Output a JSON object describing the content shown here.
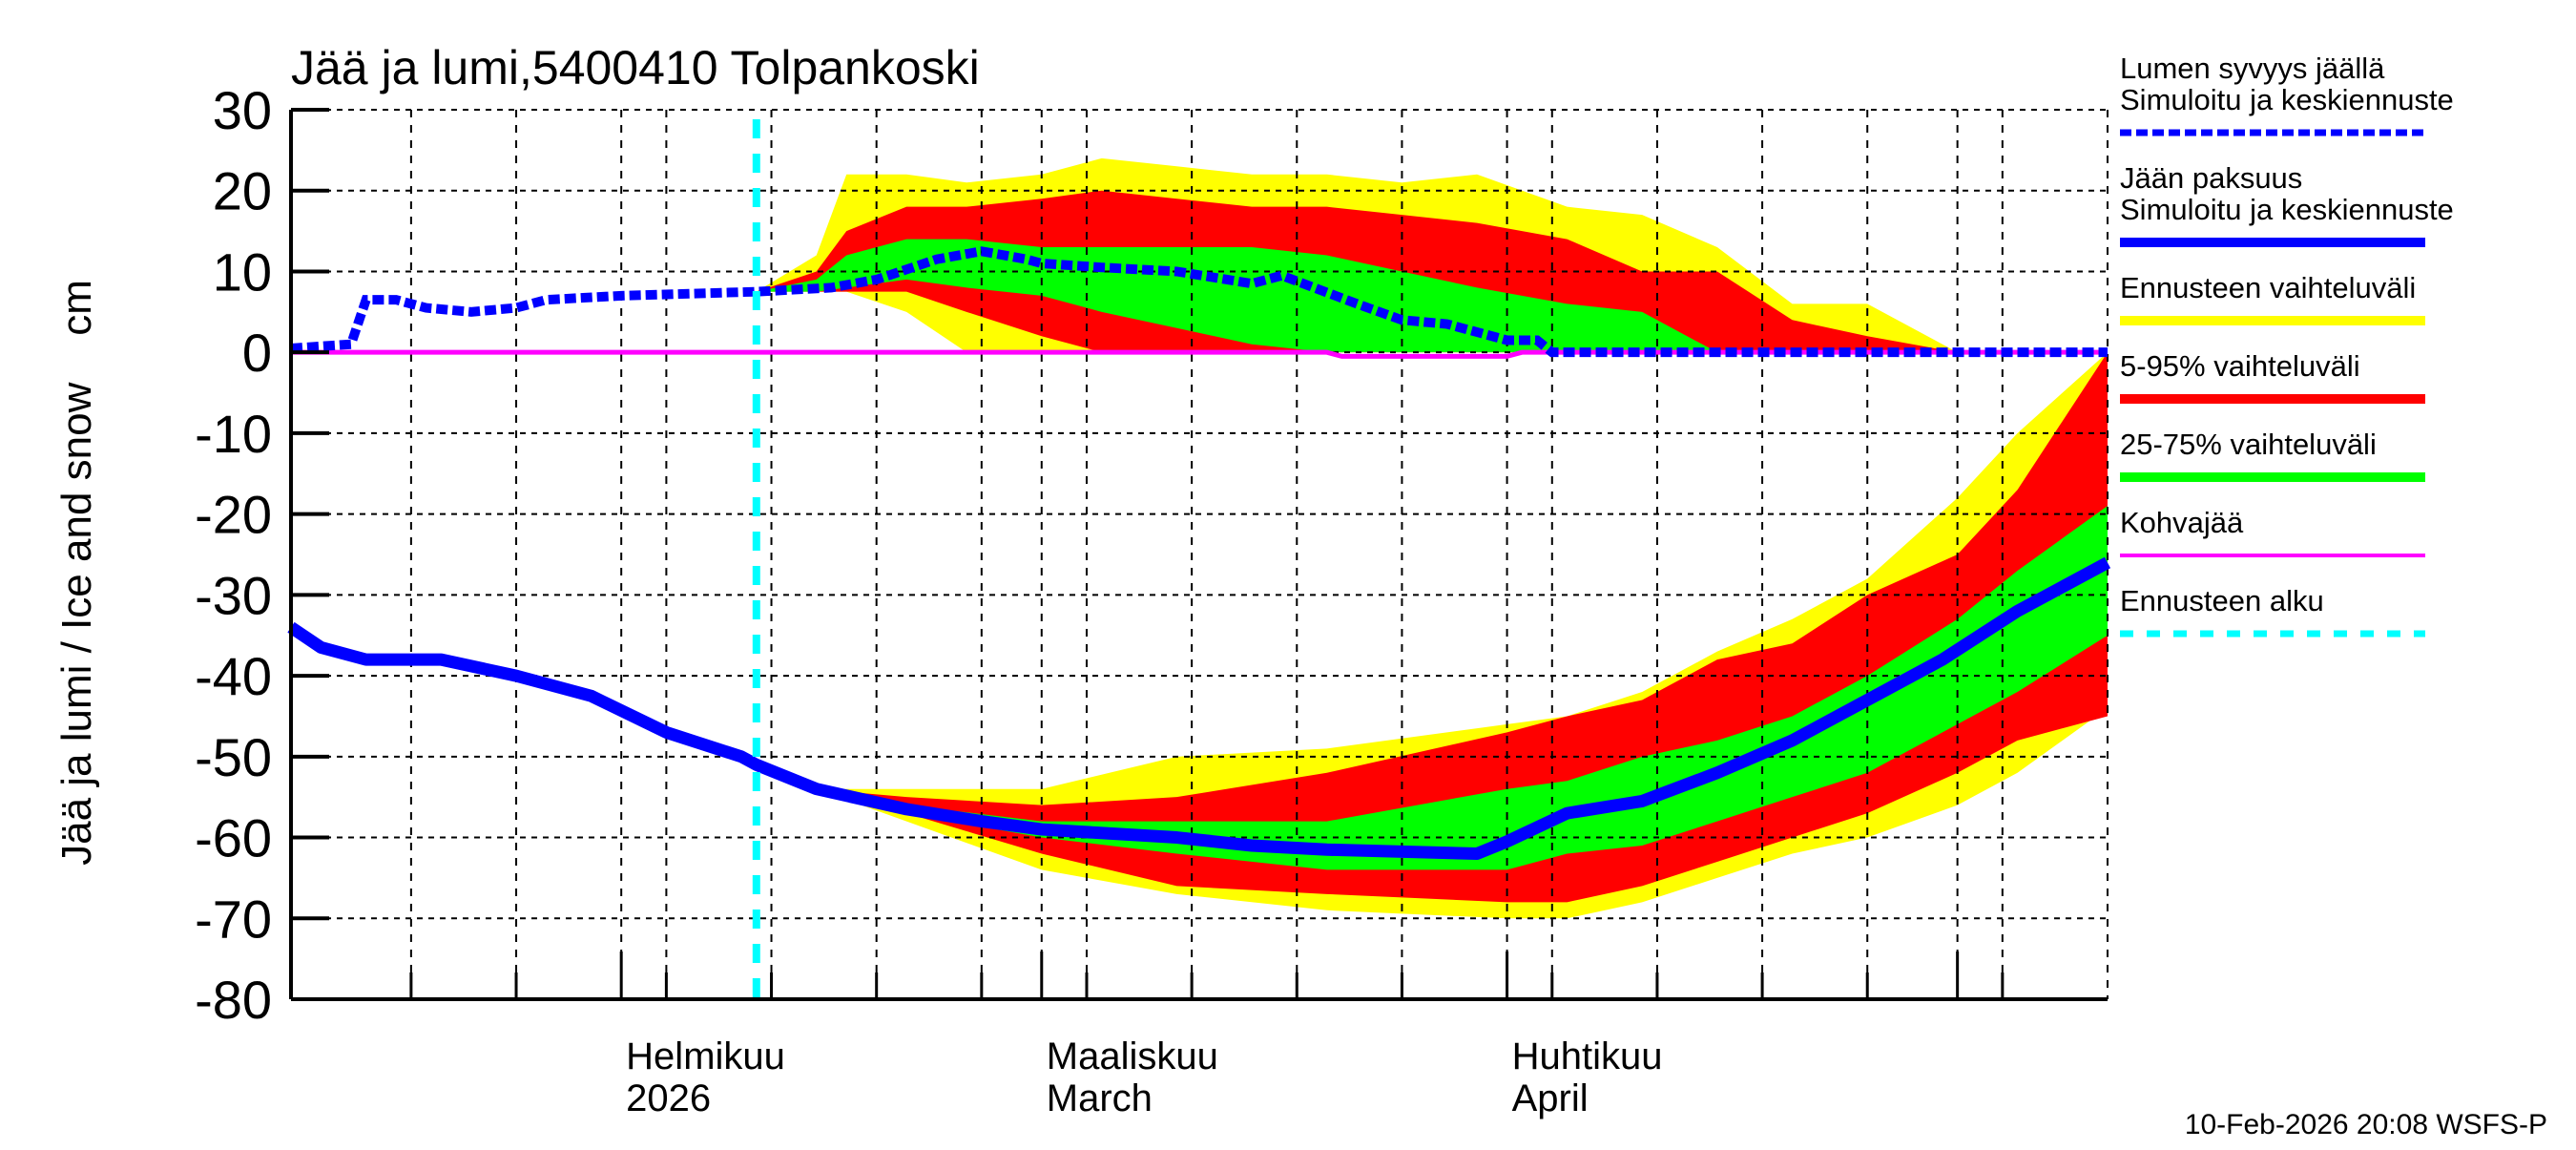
{
  "chart_data": {
    "type": "area",
    "title": "Jää ja lumi,5400410 Tolpankoski",
    "ylabel": "Jää ja lumi / Ice and snow    cm",
    "xlabel": "",
    "ylim": [
      -80,
      30
    ],
    "xlim": [
      "2026-01-10",
      "2026-05-11"
    ],
    "yticks": [
      "30",
      "20",
      "10",
      "0",
      "-10",
      "-20",
      "-30",
      "-40",
      "-50",
      "-60",
      "-70",
      "-80"
    ],
    "xtick_labels": [
      {
        "date": "2026-02-01",
        "line1": "Helmikuu",
        "line2": "2026"
      },
      {
        "date": "2026-03-01",
        "line1": "Maaliskuu",
        "line2": "March"
      },
      {
        "date": "2026-04-01",
        "line1": "Huhtikuu",
        "line2": "April"
      }
    ],
    "grid": true,
    "legend_position": "right",
    "forecast_start": "2026-02-10",
    "legend": [
      {
        "line1": "Lumen syvyys jäällä",
        "line2": "Simuloitu ja keskiennuste",
        "color": "#0000ff",
        "style": "dotted"
      },
      {
        "line1": "Jään paksuus",
        "line2": "Simuloitu ja keskiennuste",
        "color": "#0000ff",
        "style": "solid"
      },
      {
        "line1": "Ennusteen vaihteluväli",
        "color": "#ffff00",
        "style": "band"
      },
      {
        "line1": "5-95% vaihteluväli",
        "color": "#ff0000",
        "style": "band"
      },
      {
        "line1": "25-75% vaihteluväli",
        "color": "#00ff00",
        "style": "band"
      },
      {
        "line1": "Kohvajää",
        "color": "#ff00ff",
        "style": "solid"
      },
      {
        "line1": "Ennusteen alku",
        "color": "#00ffff",
        "style": "dashed"
      }
    ],
    "snow_depth": {
      "x": [
        "2026-01-10",
        "2026-01-14",
        "2026-01-15",
        "2026-01-17",
        "2026-01-19",
        "2026-01-22",
        "2026-01-25",
        "2026-01-27",
        "2026-02-01",
        "2026-02-10",
        "2026-02-15",
        "2026-02-18",
        "2026-02-22",
        "2026-02-25",
        "2026-02-28",
        "2026-03-01",
        "2026-03-05",
        "2026-03-10",
        "2026-03-15",
        "2026-03-17",
        "2026-03-22",
        "2026-03-25",
        "2026-03-28",
        "2026-04-01",
        "2026-04-03",
        "2026-04-04",
        "2026-05-11"
      ],
      "y": [
        0.5,
        1,
        6.5,
        6.5,
        5.5,
        5,
        5.5,
        6.5,
        7,
        7.5,
        8,
        9,
        11.5,
        12.5,
        11.5,
        11,
        10.5,
        10,
        8.5,
        9.5,
        6,
        4,
        3.5,
        1.5,
        1.5,
        0,
        0
      ]
    },
    "snow_bands": {
      "x": [
        "2026-02-10",
        "2026-02-14",
        "2026-02-16",
        "2026-02-20",
        "2026-02-24",
        "2026-03-01",
        "2026-03-05",
        "2026-03-10",
        "2026-03-15",
        "2026-03-20",
        "2026-03-25",
        "2026-03-30",
        "2026-04-05",
        "2026-04-10",
        "2026-04-15",
        "2026-04-20",
        "2026-04-25",
        "2026-05-01",
        "2026-05-11"
      ],
      "range_upper": [
        7.5,
        12,
        22,
        22,
        21,
        22,
        24,
        23,
        22,
        22,
        21,
        22,
        18,
        17,
        13,
        6,
        6,
        0,
        0
      ],
      "range_lower": [
        7.5,
        7.5,
        7.5,
        5,
        0,
        0,
        0,
        0,
        0,
        0,
        0,
        0,
        0,
        0,
        0,
        0,
        0,
        0,
        0
      ],
      "p95": [
        7.5,
        10,
        15,
        18,
        18,
        19,
        20,
        19,
        18,
        18,
        17,
        16,
        14,
        10,
        10,
        4,
        2,
        0,
        0
      ],
      "p5": [
        7.5,
        7.5,
        7.5,
        7.5,
        5,
        2,
        0,
        0,
        0,
        0,
        0,
        0,
        0,
        0,
        0,
        0,
        0,
        0,
        0
      ],
      "p75": [
        7.5,
        9,
        12,
        14,
        14,
        13,
        13,
        13,
        13,
        12,
        10,
        8,
        6,
        5,
        0,
        0,
        0,
        0,
        0
      ],
      "p25": [
        7.5,
        7.5,
        8,
        9,
        8,
        7,
        5,
        3,
        1,
        0,
        0,
        0,
        0,
        0,
        0,
        0,
        0,
        0,
        0
      ]
    },
    "ice_thickness": {
      "x": [
        "2026-01-10",
        "2026-01-12",
        "2026-01-15",
        "2026-01-20",
        "2026-01-25",
        "2026-01-30",
        "2026-02-04",
        "2026-02-09",
        "2026-02-10",
        "2026-02-14",
        "2026-02-20",
        "2026-02-25",
        "2026-03-01",
        "2026-03-10",
        "2026-03-15",
        "2026-03-20",
        "2026-03-30",
        "2026-04-01",
        "2026-04-05",
        "2026-04-10",
        "2026-04-15",
        "2026-04-20",
        "2026-04-25",
        "2026-04-30",
        "2026-05-05",
        "2026-05-11"
      ],
      "y": [
        -34,
        -36.5,
        -38,
        -38,
        -40,
        -42.5,
        -47,
        -50,
        -51,
        -54,
        -56.5,
        -58,
        -59,
        -60,
        -61,
        -61.5,
        -62,
        -60.5,
        -57,
        -55.5,
        -52,
        -48,
        -43,
        -38,
        -32,
        -26
      ]
    },
    "ice_bands": {
      "x": [
        "2026-02-10",
        "2026-02-14",
        "2026-02-20",
        "2026-03-01",
        "2026-03-10",
        "2026-03-20",
        "2026-04-01",
        "2026-04-05",
        "2026-04-10",
        "2026-04-15",
        "2026-04-20",
        "2026-04-25",
        "2026-05-01",
        "2026-05-05",
        "2026-05-11"
      ],
      "range_upper": [
        -51,
        -54,
        -54,
        -54,
        -50,
        -49,
        -46,
        -45,
        -42,
        -37,
        -33,
        -28,
        -18,
        -10,
        0
      ],
      "range_lower": [
        -51,
        -54,
        -58,
        -64,
        -67,
        -69,
        -70,
        -70,
        -68,
        -65,
        -62,
        -60,
        -56,
        -52,
        -44
      ],
      "p95": [
        -51,
        -54,
        -55,
        -56,
        -55,
        -52,
        -47,
        -45,
        -43,
        -38,
        -36,
        -30,
        -25,
        -17,
        0
      ],
      "p5": [
        -51,
        -54,
        -57,
        -62,
        -66,
        -67,
        -68,
        -68,
        -66,
        -63,
        -60,
        -57,
        -52,
        -48,
        -45
      ],
      "p75": [
        -51,
        -54,
        -56,
        -58,
        -58,
        -58,
        -54,
        -53,
        -50,
        -48,
        -45,
        -40,
        -33,
        -27,
        -19
      ],
      "p25": [
        -51,
        -54,
        -57,
        -60,
        -62,
        -64,
        -64,
        -62,
        -61,
        -58,
        -55,
        -52,
        -46,
        -42,
        -35
      ]
    },
    "slush_ice": {
      "x": [
        "2026-01-10",
        "2026-03-20",
        "2026-03-21",
        "2026-04-01",
        "2026-04-02",
        "2026-05-11"
      ],
      "y": [
        0,
        0,
        -0.5,
        -0.5,
        0,
        0
      ]
    }
  },
  "footer": "10-Feb-2026 20:08 WSFS-P",
  "colors": {
    "range": "#ffff00",
    "p5_95": "#ff0000",
    "p25_75": "#00ff00",
    "median": "#0000ff",
    "slush": "#ff00ff",
    "forecast_start": "#00ffff"
  }
}
